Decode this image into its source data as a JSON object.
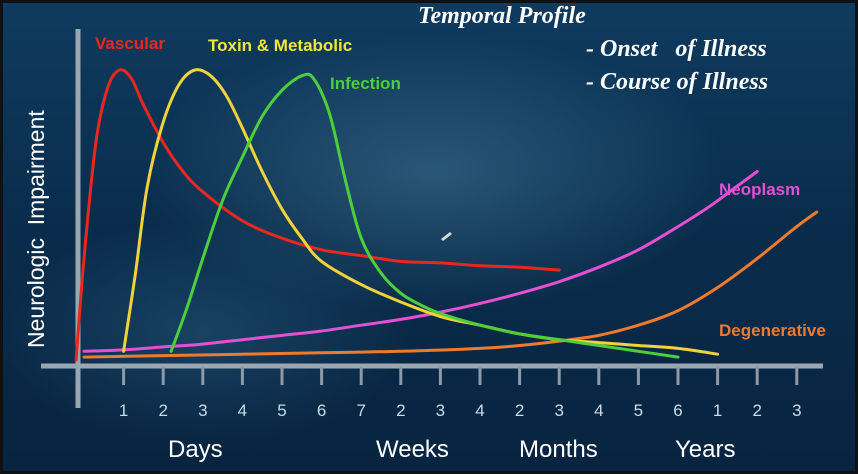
{
  "chart_data": {
    "type": "line",
    "title": "Temporal Profile",
    "subtitle_lines": [
      "- Onset   of Illness",
      "- Course of Illness"
    ],
    "ylabel": "Neurologic  Impairment",
    "xlabel": "",
    "x_tick_labels": [
      "1",
      "2",
      "3",
      "4",
      "5",
      "6",
      "7",
      "2",
      "3",
      "4",
      "2",
      "3",
      "4",
      "5",
      "6",
      "1",
      "2",
      "3"
    ],
    "x_unit_labels": [
      "Days",
      "Weeks",
      "Months",
      "Years"
    ],
    "x_tick_positions": [
      1,
      2,
      3,
      4,
      5,
      6,
      7,
      8,
      9,
      10,
      11,
      12,
      13,
      14,
      15,
      16,
      17,
      18
    ],
    "xlim": [
      -0.2,
      18.5
    ],
    "ylim": [
      0,
      100
    ],
    "grid": false,
    "series": [
      {
        "name": "Vascular",
        "color": "#e8281e",
        "x": [
          -0.2,
          0.0,
          0.3,
          0.6,
          0.9,
          1.2,
          1.5,
          2.0,
          2.5,
          3.0,
          4.0,
          5.0,
          6.0,
          7.0,
          8.0,
          9.0,
          10.0,
          11.0,
          12.0
        ],
        "y": [
          0,
          35,
          75,
          94,
          100,
          97,
          88,
          75,
          65,
          58,
          48,
          42,
          38,
          36,
          34,
          33.5,
          32.5,
          32,
          31
        ]
      },
      {
        "name": "Toxin & Metabolic",
        "color": "#f2d23a",
        "x": [
          1.0,
          1.3,
          1.6,
          2.0,
          2.4,
          2.8,
          3.2,
          3.6,
          4.0,
          4.5,
          5.0,
          5.5,
          6.0,
          7.0,
          8.0,
          9.0,
          10.0,
          11.0,
          12.0,
          13.0,
          14.0,
          15.0,
          16.0
        ],
        "y": [
          3,
          30,
          60,
          82,
          95,
          100,
          98,
          91,
          80,
          65,
          52,
          42,
          34,
          26,
          20,
          15,
          12,
          9,
          7,
          6,
          5,
          4,
          2
        ]
      },
      {
        "name": "Infection",
        "color": "#4ccf3a",
        "x": [
          2.2,
          2.6,
          3.0,
          3.5,
          4.0,
          4.5,
          5.0,
          5.5,
          5.8,
          6.2,
          6.6,
          7.0,
          7.5,
          8.0,
          8.5,
          9.0,
          10.0,
          11.0,
          12.0,
          13.0,
          14.0,
          15.0
        ],
        "y": [
          3,
          18,
          35,
          55,
          70,
          84,
          93,
          98,
          97,
          85,
          62,
          42,
          30,
          23,
          19,
          16,
          12,
          9,
          7,
          5,
          3,
          1
        ]
      },
      {
        "name": "Neoplasm",
        "color": "#e54fd3",
        "x": [
          0.0,
          1.0,
          2.0,
          3.0,
          4.0,
          5.0,
          6.0,
          7.0,
          8.0,
          9.0,
          10.0,
          11.0,
          12.0,
          13.0,
          14.0,
          15.0,
          15.8,
          16.5,
          17.0
        ],
        "y": [
          3,
          3.5,
          4.5,
          5.5,
          7,
          8.5,
          10,
          12,
          14,
          16.5,
          19.5,
          23,
          27,
          32,
          38,
          46,
          53,
          60,
          65
        ]
      },
      {
        "name": "Degenerative",
        "color": "#ee7a2e",
        "x": [
          0.0,
          2.0,
          4.0,
          6.0,
          8.0,
          10.0,
          11.0,
          12.0,
          13.0,
          14.0,
          15.0,
          16.0,
          17.0,
          18.0,
          18.5
        ],
        "y": [
          1,
          1.5,
          2,
          2.5,
          3,
          4,
          5,
          6.5,
          8.5,
          12,
          17,
          25,
          35,
          46,
          51
        ]
      }
    ]
  }
}
